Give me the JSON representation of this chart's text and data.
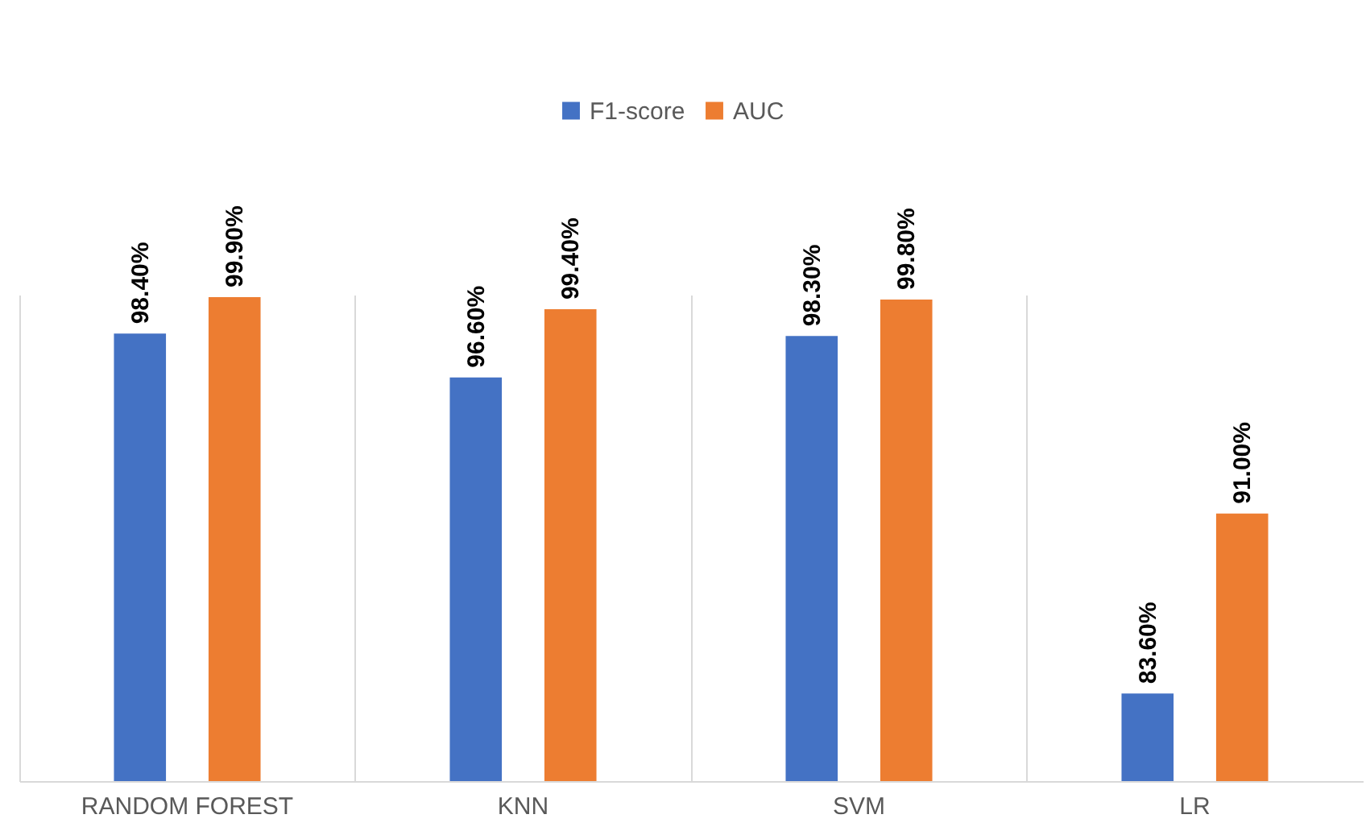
{
  "chart_data": {
    "type": "bar",
    "categories": [
      "RANDOM FOREST",
      "KNN",
      "SVM",
      "LR"
    ],
    "series": [
      {
        "name": "F1-score",
        "color": "#4472c4",
        "values": [
          98.4,
          96.6,
          98.3,
          83.6
        ],
        "value_labels": [
          "98.40%",
          "96.60%",
          "98.30%",
          "83.60%"
        ]
      },
      {
        "name": "AUC",
        "color": "#ed7d31",
        "values": [
          99.9,
          99.4,
          99.8,
          91.0
        ],
        "value_labels": [
          "99.90%",
          "99.40%",
          "99.80%",
          "91.00%"
        ]
      }
    ],
    "ylim": [
      80,
      100
    ],
    "tick_labels": "x",
    "grid": "x",
    "legend": "top"
  }
}
